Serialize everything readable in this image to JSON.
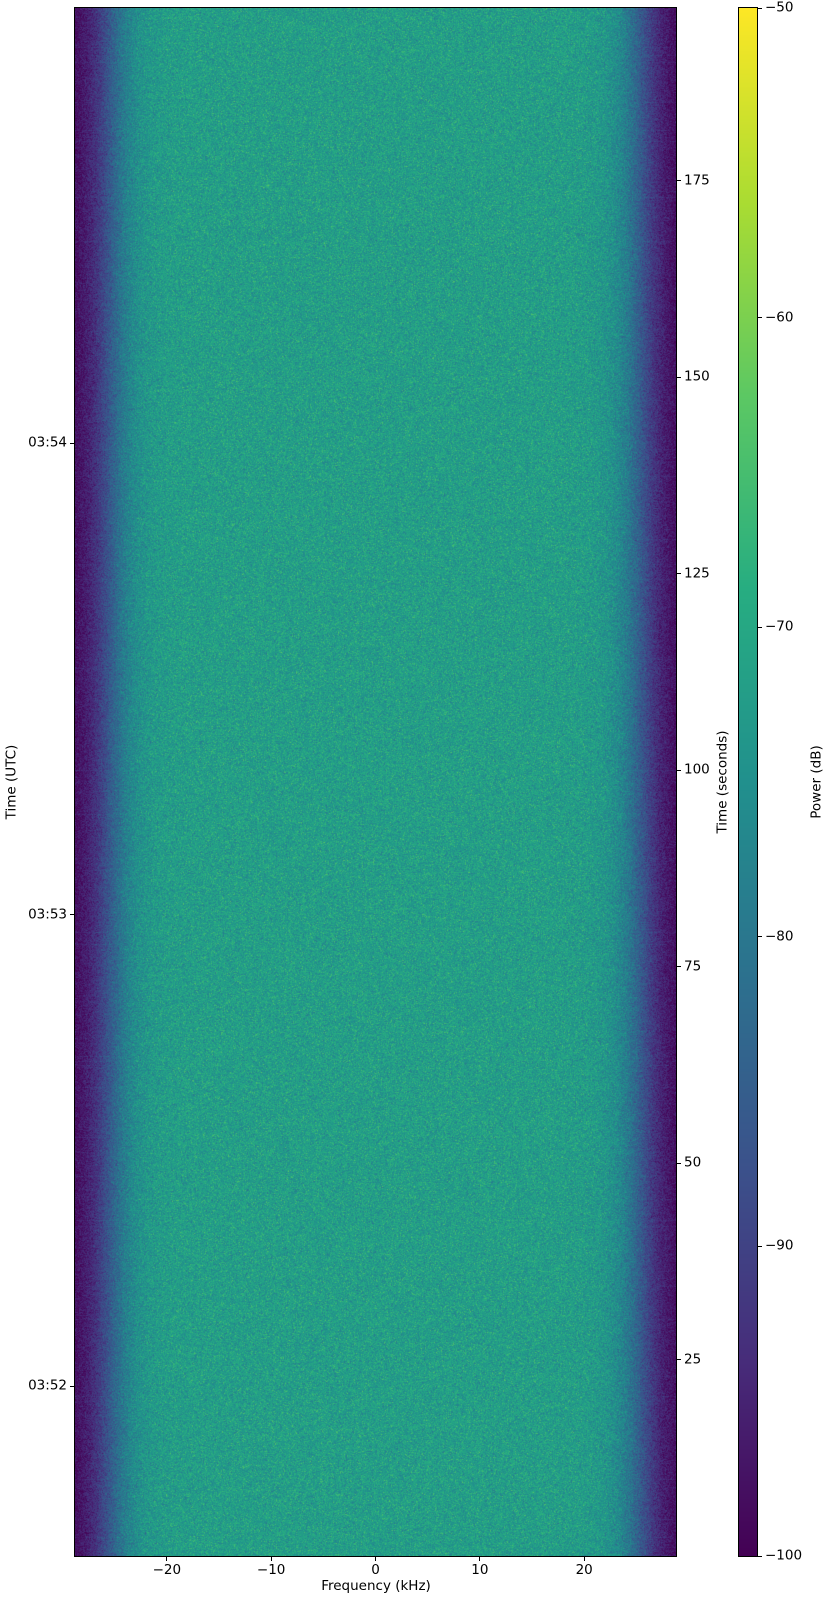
{
  "chart_data": {
    "type": "heatmap",
    "title": "",
    "xlabel": "Frequency (kHz)",
    "ylabel_left": "Time (UTC)",
    "ylabel_right": "Time (seconds)",
    "colorbar_label": "Power (dB)",
    "colormap": "viridis",
    "xlim": [
      -28.8,
      28.8
    ],
    "ylim_seconds": [
      0,
      197
    ],
    "clim": [
      -100,
      -50
    ],
    "x_ticks": [
      -20,
      -10,
      0,
      10,
      20
    ],
    "x_tick_labels": [
      "−20",
      "−10",
      "0",
      "10",
      "20"
    ],
    "right_ticks": [
      25,
      50,
      75,
      100,
      125,
      150,
      175
    ],
    "right_tick_labels": [
      "25",
      "50",
      "75",
      "100",
      "125",
      "150",
      "175"
    ],
    "left_ticks_seconds": [
      21.6,
      81.6,
      141.6
    ],
    "left_tick_labels": [
      "03:52",
      "03:53",
      "03:54"
    ],
    "colorbar_ticks": [
      -100,
      -90,
      -80,
      -70,
      -60,
      -50
    ],
    "colorbar_tick_labels": [
      "−100",
      "−90",
      "−80",
      "−70",
      "−60",
      "−50"
    ],
    "passband_power_db": -72,
    "band_edge_power_db": -100,
    "passband_edge_khz": 25.5,
    "noise_std_db": 3
  }
}
